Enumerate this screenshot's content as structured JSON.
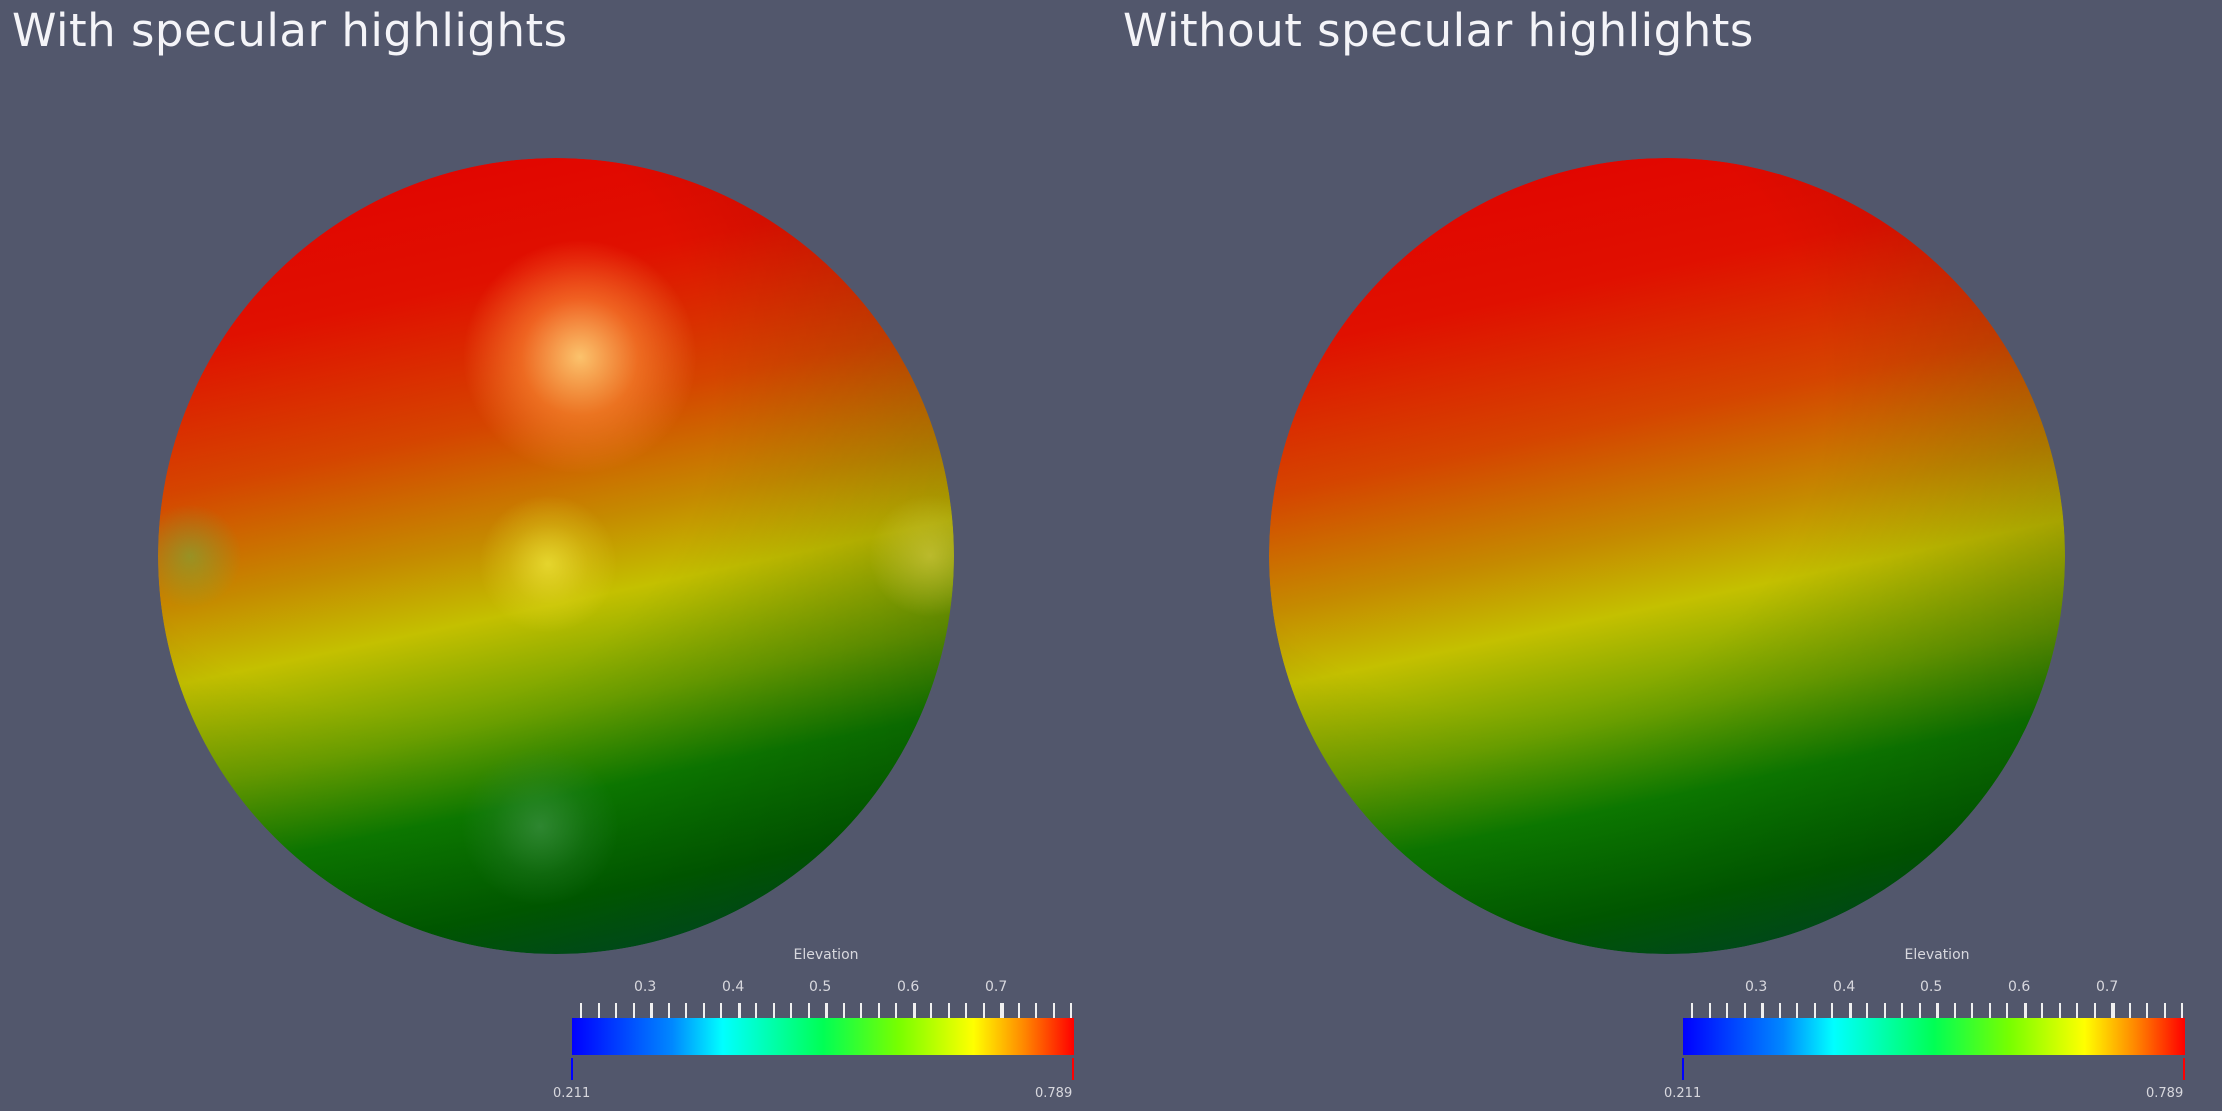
{
  "views": [
    {
      "title": "With specular highlights",
      "colorbar": {
        "title": "Elevation",
        "tick_labels": [
          "0.3",
          "0.4",
          "0.5",
          "0.6",
          "0.7"
        ],
        "min_label": "0.211",
        "max_label": "0.789"
      }
    },
    {
      "title": "Without specular highlights",
      "colorbar": {
        "title": "Elevation",
        "tick_labels": [
          "0.3",
          "0.4",
          "0.5",
          "0.6",
          "0.7"
        ],
        "min_label": "0.211",
        "max_label": "0.789"
      }
    }
  ],
  "colors": {
    "background": "#52576c",
    "colormap": [
      "#0000ff",
      "#00ffff",
      "#00ff00",
      "#ffff00",
      "#ff0000"
    ]
  }
}
